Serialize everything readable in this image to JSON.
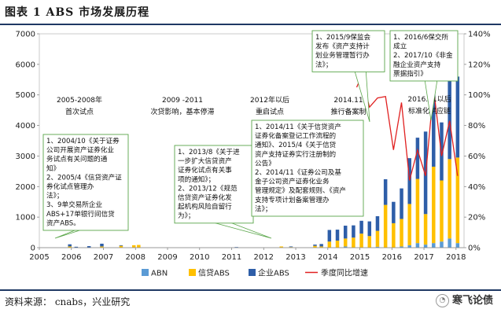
{
  "figure": {
    "title": "图表 1    ABS 市场发展历程",
    "source": "资料来源：  cnabs，兴业研究",
    "brand": "寒飞论债"
  },
  "chart_data": {
    "type": "bar",
    "stacked": true,
    "title": "",
    "x_start": 2005,
    "x_end": 2018.25,
    "xticks": [
      "2005",
      "2006",
      "2007",
      "2008",
      "2009",
      "2010",
      "2011",
      "2012",
      "2013",
      "2014",
      "2015",
      "2016",
      "2017",
      "2018"
    ],
    "ylim": [
      0,
      7000
    ],
    "yticks": [
      "0",
      "1000",
      "2000",
      "3000",
      "4000",
      "5000",
      "6000",
      "7000"
    ],
    "y2lim": [
      0,
      140
    ],
    "y2ticks": [
      "0%",
      "20%",
      "40%",
      "60%",
      "80%",
      "100%",
      "120%",
      "140%"
    ],
    "legend": [
      "ABN",
      "信贷ABS",
      "企业ABS",
      "季度同比增速"
    ],
    "legend_position": "bottom",
    "colors": {
      "ABN": "#5b9bd5",
      "credit": "#ffc000",
      "enterprise": "#2e5ea8",
      "yoy": "#e02020"
    },
    "bars": [
      {
        "x": 2005.95,
        "abn": 0,
        "credit": 40,
        "ent": 70
      },
      {
        "x": 2006.15,
        "abn": 0,
        "credit": 0,
        "ent": 30
      },
      {
        "x": 2006.55,
        "abn": 0,
        "credit": 0,
        "ent": 50
      },
      {
        "x": 2006.95,
        "abn": 0,
        "credit": 40,
        "ent": 90
      },
      {
        "x": 2007.55,
        "abn": 0,
        "credit": 60,
        "ent": 20
      },
      {
        "x": 2007.95,
        "abn": 0,
        "credit": 80,
        "ent": 0
      },
      {
        "x": 2008.1,
        "abn": 0,
        "credit": 90,
        "ent": 0
      },
      {
        "x": 2011.15,
        "abn": 0,
        "credit": 0,
        "ent": 20
      },
      {
        "x": 2012.55,
        "abn": 0,
        "credit": 40,
        "ent": 0
      },
      {
        "x": 2012.85,
        "abn": 0,
        "credit": 20,
        "ent": 20
      },
      {
        "x": 2013.6,
        "abn": 0,
        "credit": 60,
        "ent": 40
      },
      {
        "x": 2013.8,
        "abn": 0,
        "credit": 40,
        "ent": 80
      },
      {
        "x": 2014.05,
        "abn": 0,
        "credit": 200,
        "ent": 380
      },
      {
        "x": 2014.3,
        "abn": 0,
        "credit": 230,
        "ent": 360
      },
      {
        "x": 2014.55,
        "abn": 40,
        "credit": 260,
        "ent": 420
      },
      {
        "x": 2014.8,
        "abn": 0,
        "credit": 330,
        "ent": 400
      },
      {
        "x": 2015.05,
        "abn": 0,
        "credit": 460,
        "ent": 420
      },
      {
        "x": 2015.3,
        "abn": 0,
        "credit": 380,
        "ent": 480
      },
      {
        "x": 2015.55,
        "abn": 30,
        "credit": 520,
        "ent": 480
      },
      {
        "x": 2015.8,
        "abn": 0,
        "credit": 1400,
        "ent": 840
      },
      {
        "x": 2016.05,
        "abn": 0,
        "credit": 800,
        "ent": 700
      },
      {
        "x": 2016.3,
        "abn": 40,
        "credit": 900,
        "ent": 1000
      },
      {
        "x": 2016.55,
        "abn": 80,
        "credit": 1350,
        "ent": 1500
      },
      {
        "x": 2016.8,
        "abn": 150,
        "credit": 2100,
        "ent": 1350
      },
      {
        "x": 2017.05,
        "abn": 100,
        "credit": 1000,
        "ent": 2700
      },
      {
        "x": 2017.3,
        "abn": 150,
        "credit": 2500,
        "ent": 2500
      },
      {
        "x": 2017.55,
        "abn": 200,
        "credit": 2000,
        "ent": 1900
      },
      {
        "x": 2017.8,
        "abn": 300,
        "credit": 2600,
        "ent": 2700
      },
      {
        "x": 2018.05,
        "abn": 150,
        "credit": 2800,
        "ent": 2650
      }
    ],
    "yoy_line": [
      [
        2014.9,
        105
      ],
      [
        2015.05,
        112
      ],
      [
        2015.3,
        92
      ],
      [
        2015.55,
        98
      ],
      [
        2015.8,
        99
      ],
      [
        2016.05,
        64
      ],
      [
        2016.3,
        95
      ],
      [
        2016.55,
        44
      ],
      [
        2016.8,
        64
      ],
      [
        2017.05,
        47
      ],
      [
        2017.3,
        104
      ],
      [
        2017.55,
        60
      ],
      [
        2017.8,
        83
      ],
      [
        2018.05,
        47
      ]
    ],
    "phases": [
      {
        "label": "2005-2008年",
        "desc": "首次试点"
      },
      {
        "label": "2009 -2011",
        "desc": "次贷影响，基本停滞"
      },
      {
        "label": "2012年以后",
        "desc": "重启试点"
      },
      {
        "label": "2014.11",
        "desc": "推行备案制"
      },
      {
        "label": "2016.11以后",
        "desc": "标准化供应链"
      }
    ],
    "callouts": [
      {
        "lines": [
          "1、2004/10《关于证券",
          "公司开展资产证券化业",
          "务试点有关问题的通",
          "知》",
          "2、2005/4《信贷资产证",
          "券化试点管理办",
          "法》；",
          "3、9单交易所企业",
          "ABS+17单银行间信贷",
          "资产ABS。"
        ]
      },
      {
        "lines": [
          "1、2013/8《关于进",
          "一步扩大信贷资产",
          "证券化试点有关事",
          "项的通知》；",
          "2、2013/12《规范",
          "信贷资产证券化发",
          "起机构风险自留行",
          "为》；"
        ]
      },
      {
        "lines": [
          "1、2014/11《关于信贷资产",
          "证券化备案登记工作流程的",
          "通知》、2015/4《关于信贷",
          "资产支持证券实行注册制的",
          "公告》",
          "2、2014/11《证券公司及基",
          "金子公司资产证券化业务",
          "管理规定》及配套规则、《资产",
          "支持专项计划备案管理办",
          "法》；"
        ]
      },
      {
        "lines": [
          "1、2015/9保监会",
          "发布《资产支持计",
          "划业务管理暂行办",
          "法》；"
        ]
      },
      {
        "lines": [
          "1、2016/6保交所",
          "成立",
          "2、2017/10《非金",
          "融企业资产支持",
          "票据指引》"
        ]
      }
    ]
  }
}
